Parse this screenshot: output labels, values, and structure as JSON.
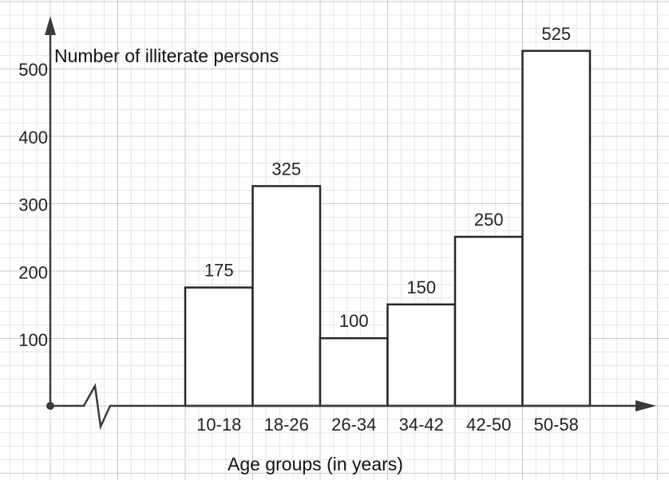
{
  "chart_data": {
    "type": "bar",
    "title": "",
    "xlabel": "Age groups (in years)",
    "ylabel": "Number of illiterate persons",
    "categories": [
      "10-18",
      "18-26",
      "26-34",
      "34-42",
      "42-50",
      "50-58"
    ],
    "values": [
      175,
      325,
      100,
      150,
      250,
      525
    ],
    "data_labels": [
      "175",
      "325",
      "100",
      "150",
      "250",
      "525"
    ],
    "y_ticks": [
      100,
      200,
      300,
      400,
      500
    ],
    "y_tick_labels": [
      "100",
      "200",
      "300",
      "400",
      "500"
    ],
    "ylim": [
      0,
      590
    ],
    "grid": true,
    "x_axis_break": true,
    "bar_style": "outlined, no gaps (histogram)"
  },
  "colors": {
    "grid_major": "#c8c8c8",
    "grid_minor": "#e6e6e6",
    "axis": "#3a3a3a",
    "bar_outline": "#262626",
    "bar_fill": "#ffffff"
  }
}
